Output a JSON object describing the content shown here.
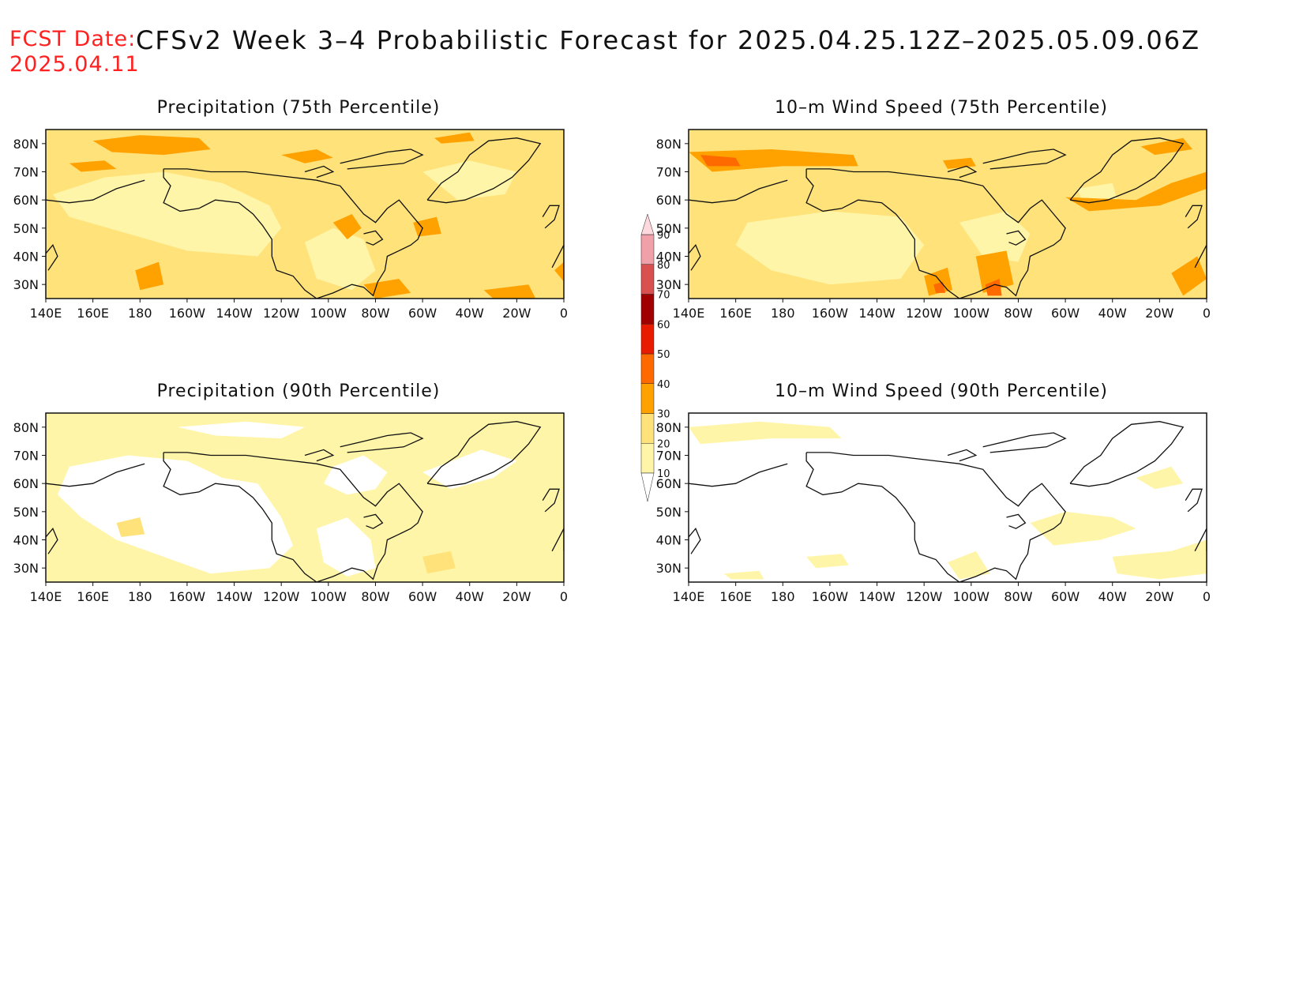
{
  "header": {
    "fcst_label": "FCST Date:",
    "fcst_date": "2025.04.11",
    "title": "CFSv2 Week 3–4 Probabilistic Forecast for 2025.04.25.12Z–2025.05.09.06Z"
  },
  "panels": [
    {
      "id": "precip75",
      "title": "Precipitation (75th Percentile)",
      "pattern": "precip75"
    },
    {
      "id": "wind75",
      "title": "10–m Wind Speed (75th Percentile)",
      "pattern": "wind75"
    },
    {
      "id": "precip90",
      "title": "Precipitation (90th Percentile)",
      "pattern": "precip90"
    },
    {
      "id": "wind90",
      "title": "10–m Wind Speed (90th Percentile)",
      "pattern": "wind90"
    }
  ],
  "axes": {
    "lon_labels": [
      "140E",
      "160E",
      "180",
      "160W",
      "140W",
      "120W",
      "100W",
      "80W",
      "60W",
      "40W",
      "20W",
      "0"
    ],
    "lat_labels": [
      "80N",
      "70N",
      "60N",
      "50N",
      "40N",
      "30N"
    ],
    "lat_values": [
      80,
      70,
      60,
      50,
      40,
      30
    ],
    "lat_range": [
      25,
      85
    ],
    "lon_range": [
      140,
      360
    ]
  },
  "colorbar": {
    "levels": [
      "10",
      "20",
      "30",
      "40",
      "50",
      "60",
      "70",
      "80",
      "90"
    ],
    "colors": {
      "below": "#ffffff",
      "10_20": "#fff5a8",
      "20_30": "#ffe27a",
      "30_40": "#ffa200",
      "40_50": "#ff6a00",
      "50_60": "#e81a00",
      "60_70": "#a00000",
      "70_80": "#d85050",
      "80_90": "#f0a0a8",
      "above": "#fdd8dc"
    }
  }
}
